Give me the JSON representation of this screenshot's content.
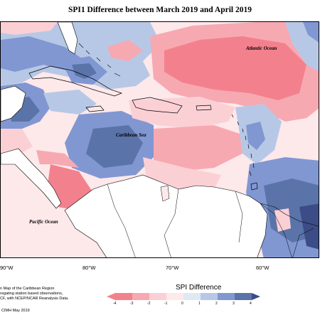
{
  "title": "SPI1 Difference between March 2019 and April 2019",
  "labels": {
    "atlantic": "Atlantic Ocean",
    "caribbean": "Caribbean Sea",
    "pacific": "Pacific Ocean"
  },
  "lon_ticks": [
    "90°W",
    "80°W",
    "70°W",
    "60°W"
  ],
  "notes": {
    "line1": "n Map of the Caribbean Region",
    "line2": "regating station based observations,",
    "line3": "CF, with NCEP/NCAR Reanalysis Data.",
    "credit": "CIMH May 2019"
  },
  "legend": {
    "title": "SPI Difference",
    "ticks": [
      "-4",
      "-3",
      "-2",
      "-1",
      "0",
      "1",
      "2",
      "3",
      "4"
    ],
    "colors": [
      "#f3818d",
      "#f7a9b1",
      "#fbd0d5",
      "#fde8ea",
      "#dfe9f3",
      "#b7c8e6",
      "#8197d2",
      "#5a74a9",
      "#3b4c86"
    ]
  }
}
